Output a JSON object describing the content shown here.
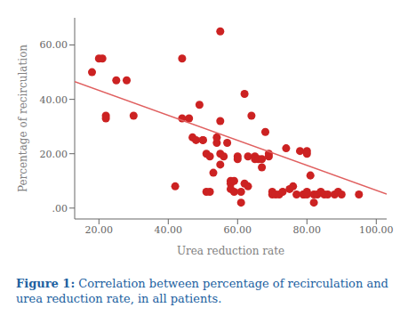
{
  "chart_data": {
    "type": "scatter",
    "title": "Figure 1:",
    "subtitle": "Correlation between percentage of recirculation and urea reduction rate, in all patients.",
    "xlabel": "Urea reduction rate",
    "ylabel": "Percentage of recirculation",
    "xlim": [
      13,
      103
    ],
    "ylim": [
      -4,
      70
    ],
    "xticks": [
      {
        "value": 20,
        "label": "20.00"
      },
      {
        "value": 40,
        "label": "40.00"
      },
      {
        "value": 60,
        "label": "60.00"
      },
      {
        "value": 80,
        "label": "80.00"
      },
      {
        "value": 100,
        "label": "100.00"
      }
    ],
    "yticks": [
      {
        "value": 0,
        "label": ".00"
      },
      {
        "value": 20,
        "label": "20.00"
      },
      {
        "value": 40,
        "label": "40.00"
      },
      {
        "value": 60,
        "label": "60.00"
      }
    ],
    "grid": false,
    "series": [
      {
        "type": "scatter",
        "marker": "circle",
        "color": "#cc2222",
        "x": [
          18,
          20,
          21,
          22,
          22,
          25,
          28,
          30,
          42,
          44,
          44,
          46,
          47,
          48,
          49,
          50,
          50,
          51,
          51,
          52,
          52,
          53,
          54,
          54,
          55,
          55,
          55,
          55,
          56,
          57,
          58,
          58,
          58,
          59,
          59,
          60,
          60,
          61,
          61,
          62,
          62,
          63,
          63,
          64,
          65,
          65,
          66,
          67,
          67,
          68,
          69,
          69,
          70,
          70,
          71,
          72,
          73,
          74,
          75,
          76,
          77,
          78,
          79,
          79,
          80,
          80,
          80,
          80,
          81,
          82,
          82,
          83,
          84,
          85,
          86,
          88,
          89,
          90,
          95
        ],
        "values": [
          50,
          55,
          55,
          34,
          33,
          47,
          47,
          34,
          8,
          55,
          33,
          33,
          26,
          25,
          38,
          25,
          25,
          20,
          6,
          19,
          6,
          13,
          24,
          26,
          65,
          32,
          20,
          16,
          19,
          24,
          10,
          9,
          7,
          10,
          6,
          19,
          18,
          6,
          2,
          9,
          42,
          19,
          8,
          34,
          19,
          18,
          18,
          18,
          15,
          28,
          19,
          20,
          6,
          5,
          5,
          5,
          6,
          22,
          7,
          8,
          5,
          21,
          5,
          5,
          21,
          20,
          6,
          5,
          12,
          5,
          2,
          5,
          6,
          5,
          5,
          5,
          6,
          5,
          5
        ]
      },
      {
        "type": "line",
        "line_style": "solid",
        "color": "#e06060",
        "x": [
          13,
          103
        ],
        "values": [
          46.52,
          5.12
        ]
      }
    ]
  }
}
